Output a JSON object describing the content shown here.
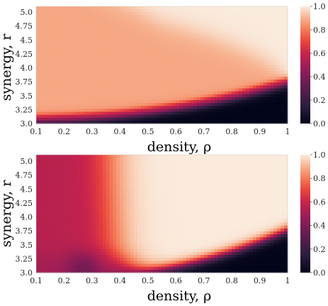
{
  "chart_data": [
    {
      "type": "heatmap",
      "title": "",
      "xlabel": "density, ρ",
      "ylabel": "synergy, r",
      "xlim": [
        0.1,
        1.0
      ],
      "ylim": [
        3.0,
        5.0
      ],
      "xticks": [
        "0.1",
        "0.2",
        "0.3",
        "0.4",
        "0.5",
        "0.6",
        "0.7",
        "0.8",
        "0.9",
        "1"
      ],
      "yticks": [
        "5.0",
        "4.75",
        "4.5",
        "4.25",
        "4.0",
        "3.75",
        "3.5",
        "3.25",
        "3.0"
      ],
      "colorbar": {
        "min": 0.0,
        "max": 1.0,
        "ticks": [
          "1.0",
          "0.8",
          "0.6",
          "0.4",
          "0.2",
          "0.0"
        ],
        "colormap": "rocket"
      },
      "grid": false,
      "description_model": {
        "regions": "value ~0.9 at low density / high synergy, ~1.0 white region at high density and high synergy, dark ~0 region below an increasing boundary",
        "boundary_r_at_density": {
          "0.1": 3.05,
          "0.5": 3.25,
          "0.8": 3.45,
          "1.0": 3.7
        },
        "white_region_boundary_r_at_density": {
          "0.6": 4.9,
          "0.8": 4.3,
          "0.9": 3.95,
          "1.0": 3.75
        }
      }
    },
    {
      "type": "heatmap",
      "title": "",
      "xlabel": "density, ρ",
      "ylabel": "synergy, r",
      "xlim": [
        0.1,
        1.0
      ],
      "ylim": [
        3.0,
        5.0
      ],
      "xticks": [
        "0.1",
        "0.2",
        "0.3",
        "0.4",
        "0.5",
        "0.6",
        "0.7",
        "0.8",
        "0.9",
        "1"
      ],
      "yticks": [
        "5.0",
        "4.75",
        "4.5",
        "4.25",
        "4.0",
        "3.75",
        "3.5",
        "3.25",
        "3.0"
      ],
      "colorbar": {
        "min": 0.0,
        "max": 1.0,
        "ticks": [
          "1.0",
          "0.8",
          "0.6",
          "0.4",
          "0.2",
          "0.0"
        ],
        "colormap": "rocket"
      },
      "grid": false,
      "description_model": {
        "regions": "value ~0.55 at low density, rising through orange to ~1.0 white at density 0.5-1.0 and high synergy, dark ~0 region at high density / low synergy",
        "transition_density_at_r": {
          "5.0": 0.36,
          "4.0": 0.4,
          "3.5": 0.45,
          "3.25": 0.52
        },
        "dark_boundary_r_at_density": {
          "0.55": 3.05,
          "0.7": 3.18,
          "0.85": 3.35,
          "1.0": 3.65
        }
      }
    }
  ]
}
